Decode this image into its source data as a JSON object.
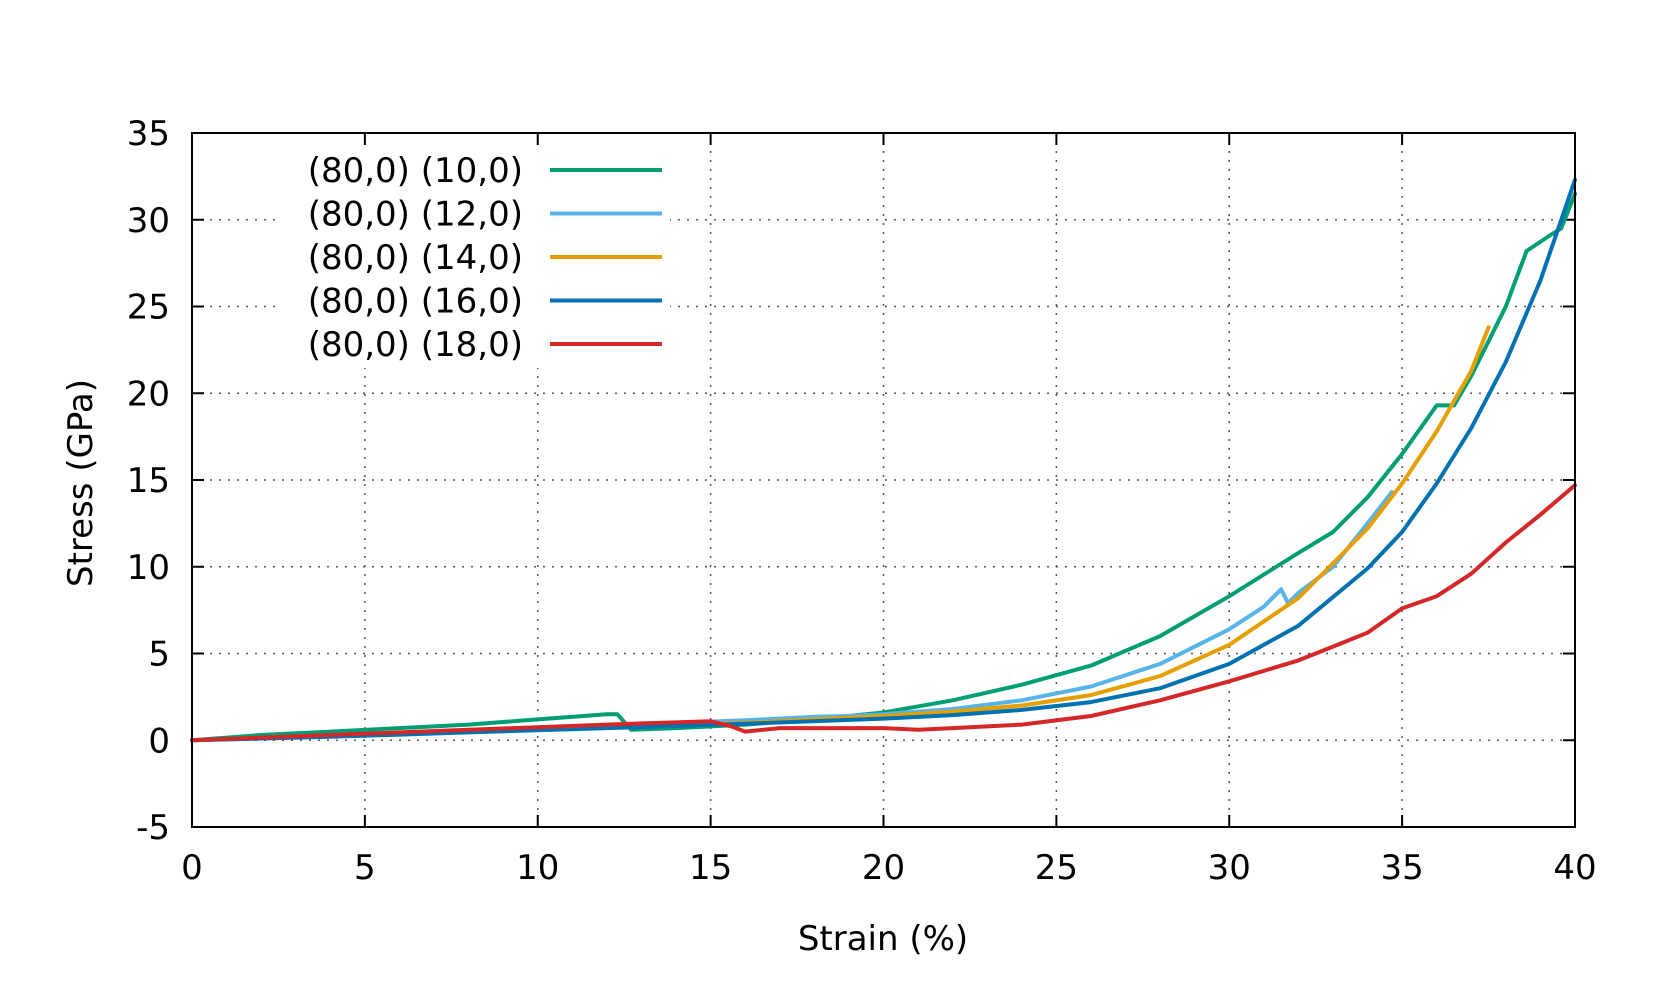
{
  "chart_data": {
    "type": "line",
    "xlabel": "Strain (%)",
    "ylabel": "Stress (GPa)",
    "xlim": [
      0,
      40
    ],
    "ylim": [
      -5,
      35
    ],
    "xticks": [
      "0",
      "5",
      "10",
      "15",
      "20",
      "25",
      "30",
      "35",
      "40"
    ],
    "yticks": [
      "-5",
      "0",
      "5",
      "10",
      "15",
      "20",
      "25",
      "30",
      "35"
    ],
    "grid": "dotted",
    "legend_position": "top-left",
    "series": [
      {
        "name": "(80,0) (10,0)",
        "color": "#009e73",
        "points": [
          [
            0,
            0
          ],
          [
            2,
            0.3
          ],
          [
            4,
            0.5
          ],
          [
            6,
            0.7
          ],
          [
            8,
            0.9
          ],
          [
            10,
            1.2
          ],
          [
            12,
            1.5
          ],
          [
            12.3,
            1.5
          ],
          [
            12.7,
            0.6
          ],
          [
            14,
            0.7
          ],
          [
            16,
            0.9
          ],
          [
            18,
            1.2
          ],
          [
            20,
            1.6
          ],
          [
            22,
            2.3
          ],
          [
            24,
            3.2
          ],
          [
            26,
            4.3
          ],
          [
            28,
            6.0
          ],
          [
            30,
            8.3
          ],
          [
            32,
            10.8
          ],
          [
            33,
            12.0
          ],
          [
            34,
            14.0
          ],
          [
            35,
            16.5
          ],
          [
            36,
            19.3
          ],
          [
            36.5,
            19.3
          ],
          [
            37,
            21.0
          ],
          [
            38,
            25.0
          ],
          [
            38.6,
            28.2
          ],
          [
            39.2,
            29.0
          ],
          [
            39.6,
            29.5
          ],
          [
            40,
            31.5
          ]
        ]
      },
      {
        "name": "(80,0) (12,0)",
        "color": "#56b4e9",
        "points": [
          [
            0,
            0
          ],
          [
            4,
            0.25
          ],
          [
            8,
            0.55
          ],
          [
            12,
            0.85
          ],
          [
            16,
            1.15
          ],
          [
            18,
            1.35
          ],
          [
            19,
            1.4
          ],
          [
            20,
            1.5
          ],
          [
            22,
            1.8
          ],
          [
            24,
            2.3
          ],
          [
            26,
            3.1
          ],
          [
            28,
            4.4
          ],
          [
            30,
            6.4
          ],
          [
            31,
            7.7
          ],
          [
            31.5,
            8.7
          ],
          [
            31.7,
            7.9
          ],
          [
            32,
            8.5
          ],
          [
            33,
            10.0
          ],
          [
            34,
            12.5
          ],
          [
            34.7,
            14.3
          ]
        ]
      },
      {
        "name": "(80,0) (14,0)",
        "color": "#e69f00",
        "points": [
          [
            0,
            0
          ],
          [
            4,
            0.25
          ],
          [
            8,
            0.5
          ],
          [
            12,
            0.75
          ],
          [
            16,
            1.0
          ],
          [
            20,
            1.4
          ],
          [
            22,
            1.65
          ],
          [
            24,
            2.0
          ],
          [
            26,
            2.6
          ],
          [
            28,
            3.7
          ],
          [
            30,
            5.5
          ],
          [
            32,
            8.2
          ],
          [
            34,
            12.2
          ],
          [
            35,
            14.8
          ],
          [
            36,
            17.8
          ],
          [
            37,
            21.3
          ],
          [
            37.5,
            23.8
          ]
        ]
      },
      {
        "name": "(80,0) (16,0)",
        "color": "#0072b2",
        "points": [
          [
            0,
            0
          ],
          [
            4,
            0.2
          ],
          [
            8,
            0.45
          ],
          [
            12,
            0.7
          ],
          [
            16,
            0.95
          ],
          [
            20,
            1.25
          ],
          [
            22,
            1.45
          ],
          [
            24,
            1.75
          ],
          [
            26,
            2.2
          ],
          [
            28,
            3.0
          ],
          [
            30,
            4.4
          ],
          [
            32,
            6.6
          ],
          [
            34,
            9.9
          ],
          [
            35,
            12.0
          ],
          [
            36,
            14.8
          ],
          [
            37,
            18.0
          ],
          [
            38,
            21.8
          ],
          [
            39,
            26.5
          ],
          [
            40,
            32.3
          ]
        ]
      },
      {
        "name": "(80,0) (18,0)",
        "color": "#d62728",
        "points": [
          [
            0,
            0
          ],
          [
            4,
            0.3
          ],
          [
            8,
            0.6
          ],
          [
            12,
            0.9
          ],
          [
            15,
            1.1
          ],
          [
            15.6,
            0.8
          ],
          [
            16,
            0.5
          ],
          [
            17,
            0.7
          ],
          [
            18,
            0.7
          ],
          [
            20,
            0.7
          ],
          [
            21,
            0.6
          ],
          [
            22,
            0.7
          ],
          [
            24,
            0.9
          ],
          [
            26,
            1.4
          ],
          [
            28,
            2.3
          ],
          [
            30,
            3.4
          ],
          [
            32,
            4.6
          ],
          [
            33,
            5.4
          ],
          [
            34,
            6.2
          ],
          [
            35,
            7.6
          ],
          [
            36,
            8.3
          ],
          [
            37,
            9.6
          ],
          [
            38,
            11.4
          ],
          [
            39,
            13.0
          ],
          [
            40,
            14.7
          ]
        ]
      }
    ]
  }
}
